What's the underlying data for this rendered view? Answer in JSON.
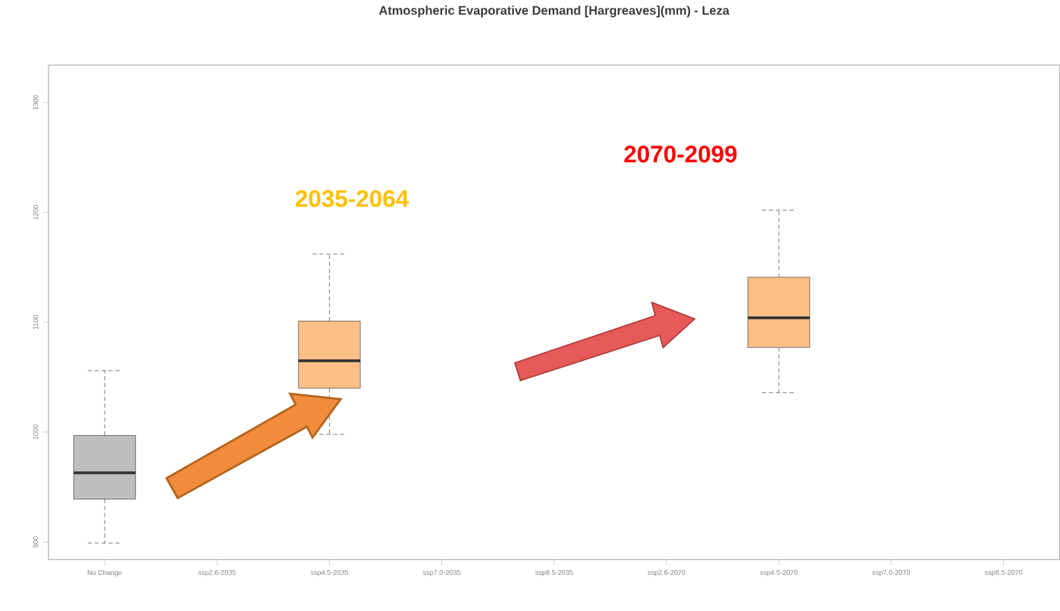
{
  "chart_data": {
    "type": "box",
    "title": "Atmospheric Evaporative Demand [Hargreaves](mm) - Leza",
    "categories": [
      "No Change",
      "ssp2.6-2035",
      "ssp4.5-2035",
      "ssp7.0-2035",
      "ssp8.5-2035",
      "ssp2.6-2070",
      "ssp4.5-2070",
      "ssp7.0-2070",
      "ssp8.5-2070"
    ],
    "boxes": [
      {
        "low": 899,
        "q1": 939,
        "median": 963,
        "q3": 997,
        "high": 1056
      },
      null,
      {
        "low": 998,
        "q1": 1040,
        "median": 1065,
        "q3": 1101,
        "high": 1162
      },
      null,
      null,
      null,
      {
        "low": 1036,
        "q1": 1077,
        "median": 1104,
        "q3": 1141,
        "high": 1202
      },
      null,
      null
    ],
    "colors": [
      "#bebebe",
      null,
      "#fdbf86",
      null,
      null,
      null,
      "#fdbf86",
      null,
      null
    ],
    "ylim": [
      884,
      1334
    ],
    "yticks": [
      900,
      1000,
      1100,
      1200,
      1300
    ],
    "annotations": [
      "2035-2064",
      "2070-2099"
    ]
  }
}
